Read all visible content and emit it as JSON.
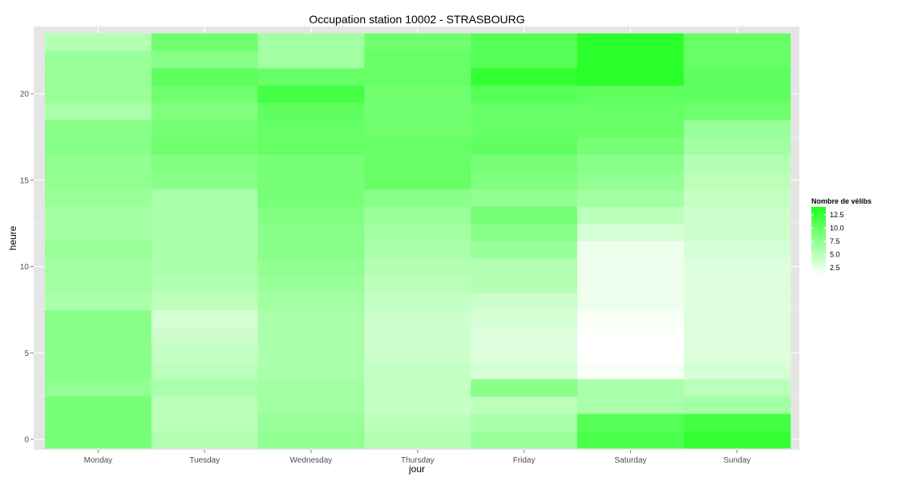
{
  "chart_data": {
    "type": "heatmap",
    "title": "Occupation station 10002 - STRASBOURG",
    "xlabel": "jour",
    "ylabel": "heure",
    "categories": [
      "Monday",
      "Tuesday",
      "Wednesday",
      "Thursday",
      "Friday",
      "Saturday",
      "Sunday"
    ],
    "y_ticks": [
      0,
      5,
      10,
      15,
      20
    ],
    "ylim": [
      -0.6,
      23.9
    ],
    "grid": true,
    "legend": {
      "title": "Nombre de vélibs",
      "placement": "right",
      "ticks": [
        12.5,
        10.0,
        7.5,
        5.0,
        2.5
      ],
      "tick_labels": [
        "12.5",
        "10.0",
        "7.5",
        "5.0",
        "2.5"
      ],
      "range": [
        1.0,
        14.0
      ],
      "low_color": "#ffffff",
      "high_color": "#22ff22"
    },
    "hours": [
      0,
      1,
      2,
      3,
      4,
      5,
      6,
      7,
      8,
      9,
      10,
      11,
      12,
      13,
      14,
      15,
      16,
      17,
      18,
      19,
      20,
      21,
      22,
      23
    ],
    "values": [
      [
        9.0,
        5.5,
        7.5,
        5.5,
        7.0,
        11.5,
        13.0
      ],
      [
        9.0,
        5.0,
        7.0,
        5.0,
        6.0,
        11.0,
        12.0
      ],
      [
        9.0,
        5.0,
        6.5,
        4.5,
        5.0,
        6.0,
        6.5
      ],
      [
        7.5,
        6.0,
        6.5,
        4.5,
        8.0,
        6.0,
        5.0
      ],
      [
        8.0,
        5.0,
        6.0,
        4.5,
        3.5,
        1.5,
        3.5
      ],
      [
        8.0,
        4.5,
        6.0,
        4.0,
        3.0,
        1.0,
        3.0
      ],
      [
        8.0,
        4.0,
        6.0,
        4.0,
        3.0,
        1.0,
        3.0
      ],
      [
        8.0,
        3.5,
        6.0,
        4.0,
        3.5,
        1.5,
        3.0
      ],
      [
        6.0,
        5.0,
        6.5,
        4.5,
        4.0,
        2.0,
        3.0
      ],
      [
        6.5,
        5.5,
        7.0,
        5.0,
        5.5,
        2.0,
        3.0
      ],
      [
        6.5,
        6.0,
        7.5,
        5.5,
        5.5,
        2.0,
        3.0
      ],
      [
        7.0,
        6.0,
        8.0,
        6.0,
        7.0,
        2.0,
        3.5
      ],
      [
        6.5,
        6.0,
        8.0,
        6.5,
        8.0,
        3.5,
        4.0
      ],
      [
        6.5,
        6.0,
        8.5,
        7.0,
        9.0,
        5.0,
        4.0
      ],
      [
        7.0,
        6.0,
        9.0,
        8.0,
        7.5,
        6.5,
        4.5
      ],
      [
        7.5,
        8.0,
        9.0,
        10.0,
        8.5,
        7.5,
        5.0
      ],
      [
        7.5,
        8.5,
        9.0,
        10.0,
        9.0,
        8.0,
        5.5
      ],
      [
        8.0,
        9.5,
        10.0,
        10.0,
        10.5,
        9.0,
        6.5
      ],
      [
        8.0,
        9.0,
        10.0,
        9.5,
        10.0,
        10.0,
        7.0
      ],
      [
        6.0,
        8.5,
        10.5,
        9.5,
        10.0,
        10.0,
        9.5
      ],
      [
        7.0,
        9.5,
        12.0,
        9.5,
        11.0,
        10.5,
        10.5
      ],
      [
        7.0,
        10.5,
        10.0,
        10.0,
        13.0,
        13.5,
        10.5
      ],
      [
        7.0,
        8.0,
        6.5,
        10.0,
        11.0,
        13.5,
        10.0
      ],
      [
        5.5,
        9.5,
        6.5,
        9.5,
        11.0,
        13.5,
        10.0
      ]
    ]
  }
}
